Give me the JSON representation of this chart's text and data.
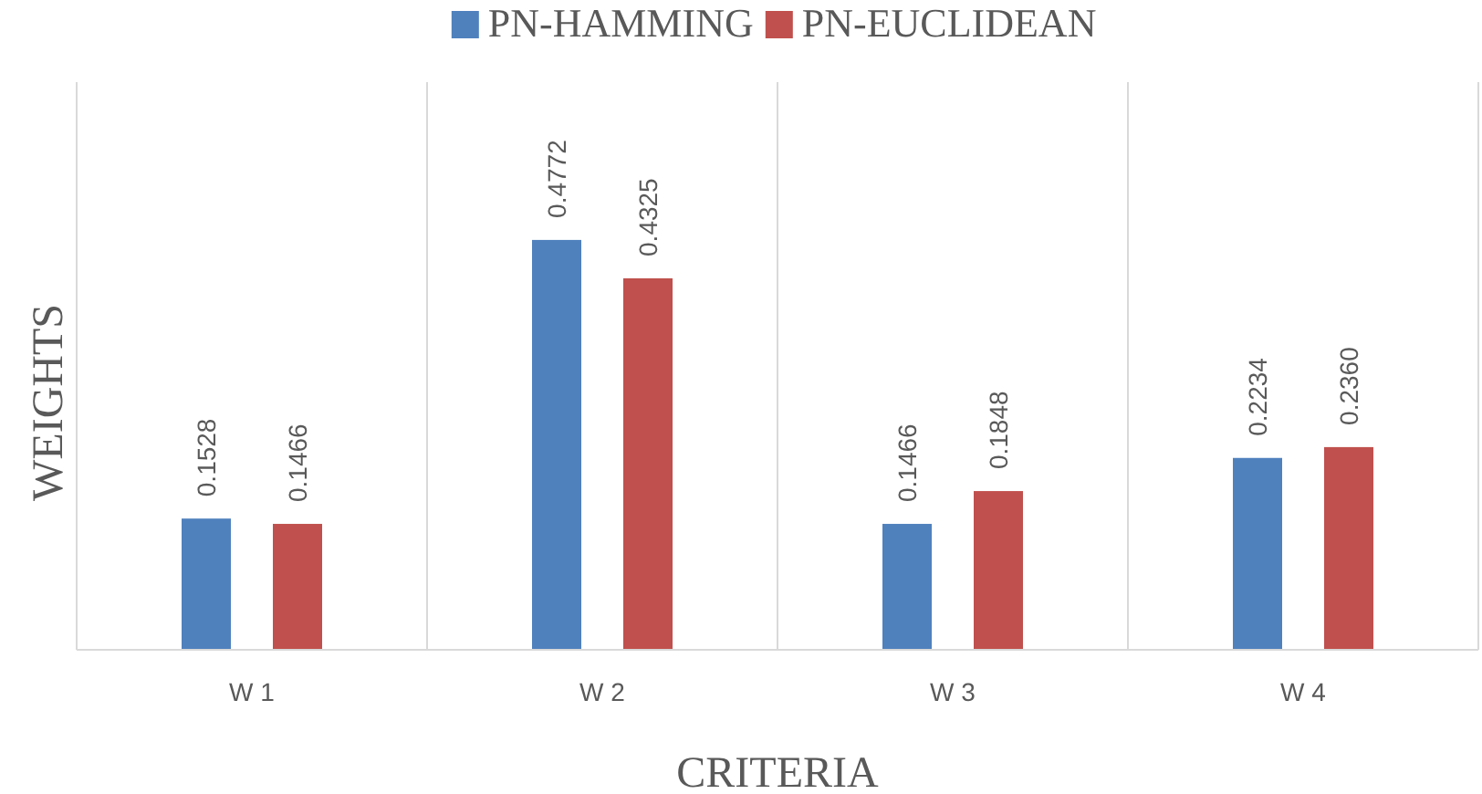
{
  "chart_data": {
    "type": "bar",
    "xlabel": "CRITERIA",
    "ylabel": "WEIGHTS",
    "categories": [
      "W 1",
      "W 2",
      "W 3",
      "W 4"
    ],
    "series": [
      {
        "name": "PN-HAMMING",
        "color": "#4f81bd",
        "values": [
          0.1528,
          0.4772,
          0.1466,
          0.2234
        ],
        "value_labels": [
          "0.1528",
          "0.4772",
          "0.1466",
          "0.2234"
        ]
      },
      {
        "name": "PN-EUCLIDEAN",
        "color": "#c0504d",
        "values": [
          0.1466,
          0.4325,
          0.1848,
          0.236
        ],
        "value_labels": [
          "0.1466",
          "0.4325",
          "0.1848",
          "0.2360"
        ]
      }
    ],
    "grid": "x",
    "legend": "top"
  }
}
